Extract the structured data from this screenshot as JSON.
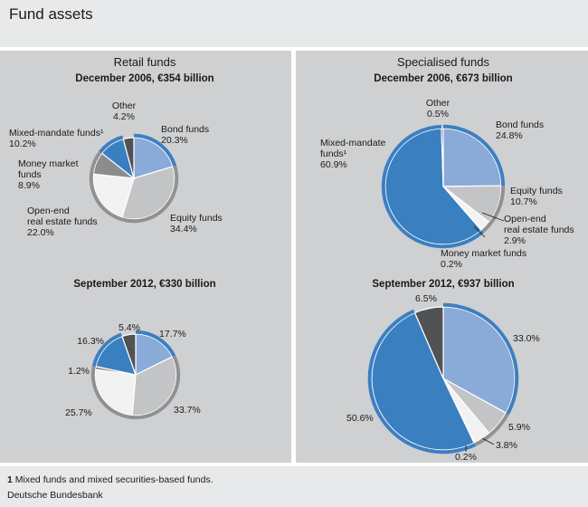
{
  "page": {
    "title": "Fund assets",
    "footnote_mark": "1",
    "footnote_text": "Mixed funds and mixed securities-based funds.",
    "source": "Deutsche Bundesbank"
  },
  "colors": {
    "bond": "#8aaad8",
    "equity": "#c3c4c6",
    "open_end_real_estate": "#f2f2f2",
    "money_market": "#8a8c8e",
    "mixed_mandate": "#3a7fc0",
    "other": "#505254",
    "panel": "#cfd0d2",
    "ring_blue": "#3d7fc1",
    "ring_grey": "#8f9193"
  },
  "chart_data": [
    {
      "type": "pie",
      "panel_title": "Retail funds",
      "title": "December 2006, €354 billion",
      "categories": [
        "Bond funds",
        "Equity funds",
        "Open-end real estate funds",
        "Money market funds",
        "Mixed-mandate funds",
        "Other"
      ],
      "values": [
        20.3,
        34.4,
        22.0,
        8.9,
        10.2,
        4.2
      ],
      "labels": [
        [
          "Bond funds",
          "20.3%"
        ],
        [
          "Equity funds",
          "34.4%"
        ],
        [
          "Open-end",
          "real estate funds",
          "22.0%"
        ],
        [
          "Money market",
          "funds",
          "8.9%"
        ],
        [
          "Mixed-mandate funds¹",
          "10.2%"
        ],
        [
          "Other",
          "4.2%"
        ]
      ]
    },
    {
      "type": "pie",
      "panel_title": "",
      "title": "September 2012, €330 billion",
      "categories": [
        "Bond funds",
        "Equity funds",
        "Open-end real estate funds",
        "Money market funds",
        "Mixed-mandate funds",
        "Other"
      ],
      "values": [
        17.7,
        33.7,
        25.7,
        1.2,
        16.3,
        5.4
      ],
      "labels": [
        [
          "17.7%"
        ],
        [
          "33.7%"
        ],
        [
          "25.7%"
        ],
        [
          "1.2%"
        ],
        [
          "16.3%"
        ],
        [
          "5.4%"
        ]
      ]
    },
    {
      "type": "pie",
      "panel_title": "Specialised funds",
      "title": "December 2006, €673 billion",
      "categories": [
        "Bond funds",
        "Equity funds",
        "Open-end real estate funds",
        "Money market funds",
        "Mixed-mandate funds",
        "Other"
      ],
      "values": [
        24.8,
        10.7,
        2.9,
        0.2,
        60.9,
        0.5
      ],
      "labels": [
        [
          "Bond funds",
          "24.8%"
        ],
        [
          "Equity funds",
          "10.7%"
        ],
        [
          "Open-end",
          "real estate funds",
          "2.9%"
        ],
        [
          "Money market funds",
          "0.2%"
        ],
        [
          "Mixed-mandate",
          "funds¹",
          "60.9%"
        ],
        [
          "Other",
          "0.5%"
        ]
      ]
    },
    {
      "type": "pie",
      "panel_title": "",
      "title": "September 2012, €937 billion",
      "categories": [
        "Bond funds",
        "Equity funds",
        "Open-end real estate funds",
        "Money market funds",
        "Mixed-mandate funds",
        "Other"
      ],
      "values": [
        33.0,
        5.9,
        3.8,
        0.2,
        50.6,
        6.5
      ],
      "labels": [
        [
          "33.0%"
        ],
        [
          "5.9%"
        ],
        [
          "3.8%"
        ],
        [
          "0.2%"
        ],
        [
          "50.6%"
        ],
        [
          "6.5%"
        ]
      ]
    }
  ]
}
